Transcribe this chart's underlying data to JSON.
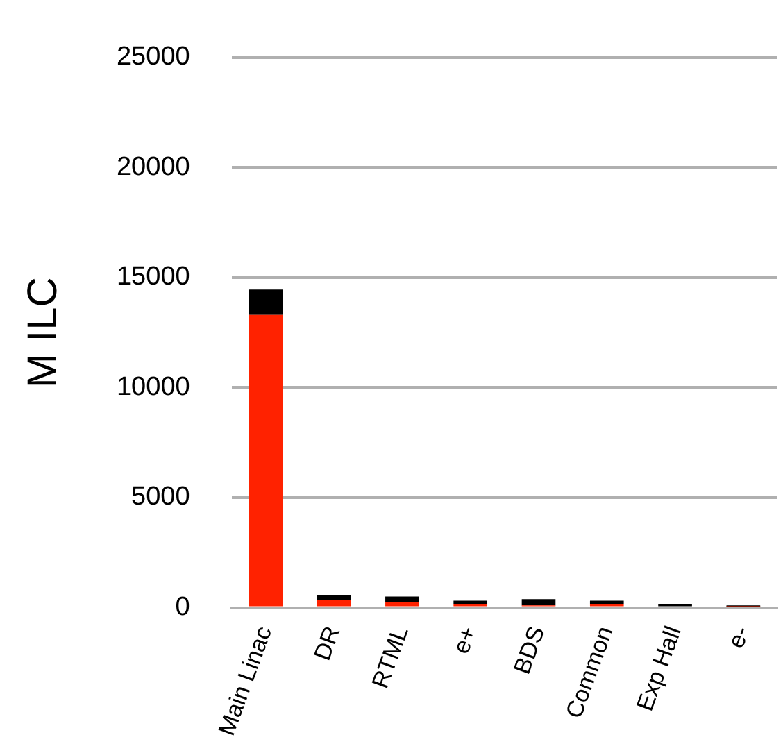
{
  "chart_data": {
    "type": "bar",
    "stacked": true,
    "ylabel": "M ILC",
    "categories": [
      "Main Linac",
      "DR",
      "RTML",
      "e+",
      "BDS",
      "Common",
      "Exp Hall",
      "e-"
    ],
    "series": [
      {
        "color": "#ff2200",
        "values": [
          13300,
          340,
          260,
          140,
          100,
          140,
          0,
          40
        ]
      },
      {
        "color": "#000000",
        "values": [
          1150,
          225,
          245,
          180,
          285,
          180,
          140,
          60
        ]
      }
    ],
    "ylim": [
      0,
      25000
    ],
    "yticks": [
      0,
      5000,
      10000,
      15000,
      20000,
      25000
    ],
    "grid": "y",
    "legend": false
  }
}
